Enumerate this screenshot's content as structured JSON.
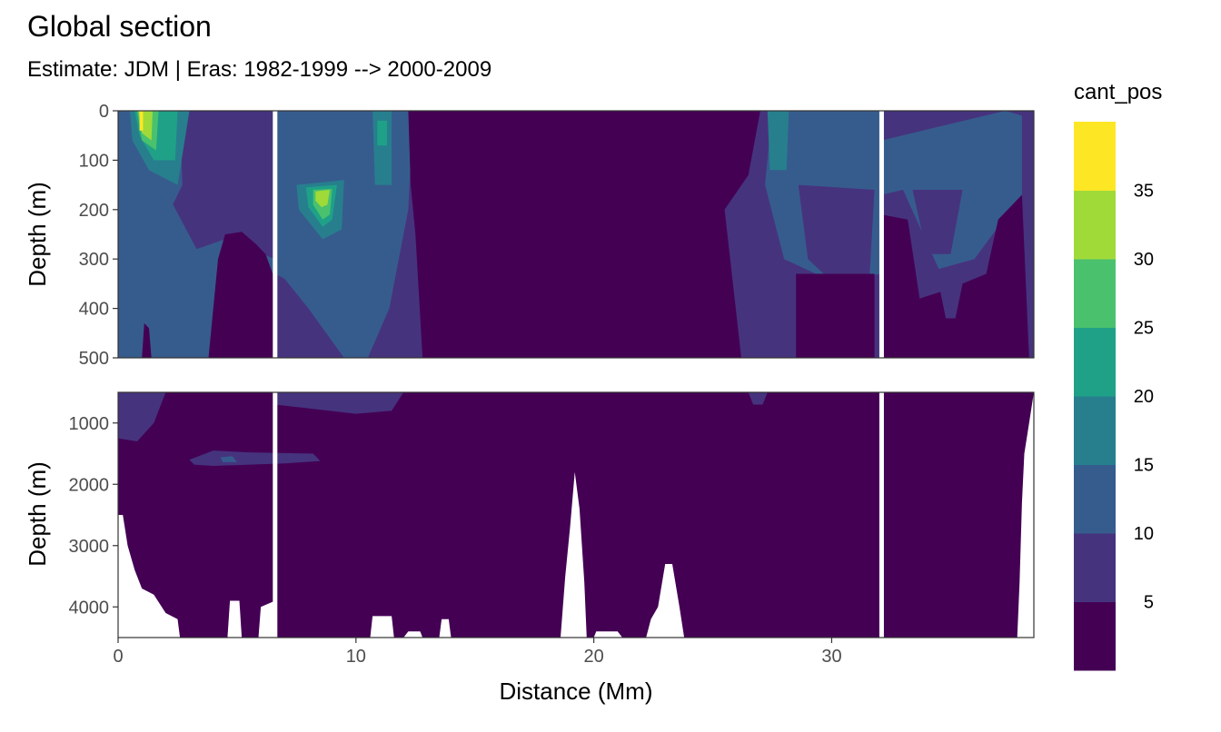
{
  "chart_data": {
    "type": "heatmap",
    "title": "Global section",
    "subtitle": "Estimate: JDM  | Eras: 1982-1999 --> 2000-2009",
    "xlabel": "Distance (Mm)",
    "ylabel": "Depth (m)",
    "xlim": [
      0,
      38.5
    ],
    "x_ticks": [
      0,
      10,
      20,
      30
    ],
    "x_tick_labels": [
      "0",
      "10",
      "20",
      "30"
    ],
    "panels": [
      {
        "name": "upper",
        "ylim": [
          0,
          500
        ],
        "y_ticks": [
          0,
          100,
          200,
          300,
          400,
          500
        ],
        "y_tick_labels": [
          "0",
          "100",
          "200",
          "300",
          "400",
          "500"
        ]
      },
      {
        "name": "lower",
        "ylim": [
          500,
          4500
        ],
        "y_ticks": [
          1000,
          2000,
          3000,
          4000
        ],
        "y_tick_labels": [
          "1000",
          "2000",
          "3000",
          "4000"
        ]
      }
    ],
    "section_gaps": [
      6.6,
      32.1
    ],
    "legend": {
      "title": "cant_pos",
      "placement": "right",
      "breaks": [
        5,
        10,
        15,
        20,
        25,
        30,
        35
      ],
      "break_labels": [
        "5",
        "10",
        "15",
        "20",
        "25",
        "30",
        "35"
      ],
      "bins": [
        {
          "range": [
            0,
            5
          ],
          "color": "#440154"
        },
        {
          "range": [
            5,
            10
          ],
          "color": "#46337E"
        },
        {
          "range": [
            10,
            15
          ],
          "color": "#365C8D"
        },
        {
          "range": [
            15,
            20
          ],
          "color": "#277F8E"
        },
        {
          "range": [
            20,
            25
          ],
          "color": "#1FA187"
        },
        {
          "range": [
            25,
            30
          ],
          "color": "#4AC16D"
        },
        {
          "range": [
            30,
            35
          ],
          "color": "#A0DA39"
        },
        {
          "range": [
            35,
            40
          ],
          "color": "#FDE725"
        }
      ]
    },
    "grid": true,
    "upper_regions": [
      {
        "level": 1,
        "poly": [
          [
            0,
            0
          ],
          [
            38.5,
            0
          ],
          [
            38.5,
            500
          ],
          [
            0,
            500
          ]
        ]
      },
      {
        "level": 2,
        "poly": [
          [
            0,
            50
          ],
          [
            1.5,
            100
          ],
          [
            2.2,
            180
          ],
          [
            3.3,
            280
          ],
          [
            4.5,
            260
          ],
          [
            5.5,
            280
          ],
          [
            6.6,
            300
          ],
          [
            6.6,
            500
          ],
          [
            0,
            500
          ]
        ]
      },
      {
        "level": 0,
        "poly": [
          [
            3.8,
            500
          ],
          [
            4.2,
            300
          ],
          [
            4.5,
            250
          ],
          [
            5.2,
            245
          ],
          [
            5.8,
            270
          ],
          [
            6.2,
            290
          ],
          [
            6.5,
            330
          ],
          [
            6.6,
            500
          ]
        ]
      },
      {
        "level": 0,
        "poly": [
          [
            1.0,
            500
          ],
          [
            1.1,
            430
          ],
          [
            1.3,
            440
          ],
          [
            1.4,
            500
          ]
        ]
      },
      {
        "level": 2,
        "poly": [
          [
            6.6,
            0
          ],
          [
            10.5,
            0
          ],
          [
            12.4,
            0
          ],
          [
            12.2,
            200
          ],
          [
            11.4,
            400
          ],
          [
            10.5,
            500
          ],
          [
            9.5,
            500
          ],
          [
            8.0,
            400
          ],
          [
            7.0,
            340
          ],
          [
            6.6,
            330
          ]
        ]
      },
      {
        "level": 2,
        "poly": [
          [
            0,
            0
          ],
          [
            2.6,
            0
          ],
          [
            2.7,
            150
          ],
          [
            1.8,
            240
          ],
          [
            0.6,
            180
          ],
          [
            0,
            100
          ]
        ]
      },
      {
        "level": 2,
        "poly": [
          [
            27.5,
            0
          ],
          [
            32.1,
            0
          ],
          [
            32.1,
            330
          ],
          [
            30.0,
            345
          ],
          [
            28.0,
            300
          ],
          [
            27.2,
            150
          ]
        ]
      },
      {
        "level": 2,
        "poly": [
          [
            32.1,
            60
          ],
          [
            37.3,
            0
          ],
          [
            38.0,
            10
          ],
          [
            38.0,
            170
          ],
          [
            36.0,
            300
          ],
          [
            34.5,
            320
          ],
          [
            33.0,
            160
          ],
          [
            32.1,
            170
          ]
        ]
      },
      {
        "level": 1,
        "poly": [
          [
            28.6,
            150
          ],
          [
            31.8,
            160
          ],
          [
            31.6,
            330
          ],
          [
            30.0,
            345
          ],
          [
            29.0,
            300
          ]
        ]
      },
      {
        "level": 1,
        "poly": [
          [
            33.4,
            160
          ],
          [
            35.5,
            160
          ],
          [
            35.0,
            290
          ],
          [
            34.0,
            290
          ]
        ]
      },
      {
        "level": 0,
        "poly": [
          [
            12.2,
            0
          ],
          [
            27.0,
            0
          ],
          [
            26.5,
            130
          ],
          [
            25.5,
            200
          ],
          [
            26.2,
            500
          ],
          [
            12.8,
            500
          ],
          [
            12.5,
            250
          ],
          [
            12.3,
            150
          ]
        ]
      },
      {
        "level": 0,
        "poly": [
          [
            21.5,
            0
          ],
          [
            22.0,
            0
          ],
          [
            22.0,
            60
          ],
          [
            21.5,
            60
          ]
        ]
      },
      {
        "level": 0,
        "poly": [
          [
            28.5,
            330
          ],
          [
            31.8,
            330
          ],
          [
            31.8,
            500
          ],
          [
            28.5,
            500
          ]
        ]
      },
      {
        "level": 0,
        "poly": [
          [
            32.1,
            210
          ],
          [
            33.2,
            220
          ],
          [
            33.7,
            380
          ],
          [
            35.0,
            360
          ],
          [
            36.5,
            330
          ],
          [
            37.0,
            220
          ],
          [
            38.0,
            170
          ],
          [
            38.3,
            500
          ],
          [
            32.1,
            500
          ]
        ]
      },
      {
        "level": 1,
        "poly": [
          [
            34.5,
            350
          ],
          [
            35.5,
            350
          ],
          [
            35.2,
            420
          ],
          [
            34.8,
            420
          ]
        ]
      },
      {
        "level": 3,
        "poly": [
          [
            0.5,
            0
          ],
          [
            3.0,
            0
          ],
          [
            2.5,
            150
          ],
          [
            1.3,
            120
          ],
          [
            0.6,
            60
          ]
        ]
      },
      {
        "level": 3,
        "poly": [
          [
            10.7,
            0
          ],
          [
            11.5,
            0
          ],
          [
            11.5,
            150
          ],
          [
            10.8,
            150
          ]
        ]
      },
      {
        "level": 3,
        "poly": [
          [
            7.5,
            150
          ],
          [
            9.5,
            140
          ],
          [
            9.4,
            240
          ],
          [
            8.6,
            260
          ],
          [
            7.6,
            200
          ]
        ]
      },
      {
        "level": 3,
        "poly": [
          [
            27.3,
            0
          ],
          [
            28.2,
            0
          ],
          [
            28.1,
            120
          ],
          [
            27.4,
            120
          ]
        ]
      },
      {
        "level": 4,
        "poly": [
          [
            0.7,
            0
          ],
          [
            2.5,
            0
          ],
          [
            2.4,
            100
          ],
          [
            1.5,
            100
          ],
          [
            0.9,
            50
          ]
        ]
      },
      {
        "level": 4,
        "poly": [
          [
            7.9,
            155
          ],
          [
            9.2,
            150
          ],
          [
            9.0,
            220
          ],
          [
            8.6,
            235
          ],
          [
            8.0,
            195
          ]
        ]
      },
      {
        "level": 4,
        "poly": [
          [
            10.9,
            20
          ],
          [
            11.3,
            20
          ],
          [
            11.3,
            70
          ],
          [
            10.9,
            70
          ]
        ]
      },
      {
        "level": 5,
        "poly": [
          [
            0.8,
            0
          ],
          [
            1.7,
            0
          ],
          [
            1.6,
            80
          ],
          [
            1.0,
            60
          ]
        ]
      },
      {
        "level": 5,
        "poly": [
          [
            8.2,
            160
          ],
          [
            9.0,
            158
          ],
          [
            8.9,
            210
          ],
          [
            8.6,
            220
          ],
          [
            8.2,
            190
          ]
        ]
      },
      {
        "level": 6,
        "poly": [
          [
            0.85,
            0
          ],
          [
            1.45,
            0
          ],
          [
            1.4,
            60
          ],
          [
            1.0,
            45
          ]
        ]
      },
      {
        "level": 6,
        "poly": [
          [
            8.3,
            163
          ],
          [
            8.9,
            160
          ],
          [
            8.8,
            190
          ],
          [
            8.55,
            195
          ],
          [
            8.3,
            182
          ]
        ]
      },
      {
        "level": 7,
        "poly": [
          [
            0.9,
            0
          ],
          [
            1.05,
            0
          ],
          [
            1.05,
            40
          ],
          [
            0.9,
            40
          ]
        ]
      }
    ],
    "lower_regions": [
      {
        "level": 0,
        "poly": [
          [
            0,
            500
          ],
          [
            38.5,
            500
          ],
          [
            38.5,
            4500
          ],
          [
            0,
            4500
          ]
        ]
      },
      {
        "level": 1,
        "poly": [
          [
            0,
            500
          ],
          [
            2.0,
            500
          ],
          [
            1.5,
            1000
          ],
          [
            0.8,
            1300
          ],
          [
            0,
            1250
          ]
        ]
      },
      {
        "level": 1,
        "poly": [
          [
            3.0,
            1600
          ],
          [
            4.0,
            1450
          ],
          [
            5.5,
            1480
          ],
          [
            8.2,
            1500
          ],
          [
            8.5,
            1620
          ],
          [
            7.0,
            1660
          ],
          [
            4.0,
            1700
          ],
          [
            3.2,
            1680
          ]
        ]
      },
      {
        "level": 2,
        "poly": [
          [
            4.3,
            1560
          ],
          [
            4.8,
            1540
          ],
          [
            5.0,
            1640
          ],
          [
            4.4,
            1640
          ]
        ]
      },
      {
        "level": 1,
        "poly": [
          [
            6.6,
            500
          ],
          [
            12.0,
            500
          ],
          [
            11.5,
            800
          ],
          [
            10.0,
            850
          ],
          [
            8.0,
            760
          ],
          [
            6.6,
            700
          ]
        ]
      },
      {
        "level": 1,
        "poly": [
          [
            26.5,
            500
          ],
          [
            27.3,
            500
          ],
          [
            27.1,
            700
          ],
          [
            26.7,
            700
          ]
        ]
      }
    ],
    "lower_blank": [
      [
        [
          0,
          2500
        ],
        [
          0.2,
          2500
        ],
        [
          0.4,
          3000
        ],
        [
          0.7,
          3400
        ],
        [
          1.0,
          3700
        ],
        [
          1.5,
          3800
        ],
        [
          2.0,
          4100
        ],
        [
          2.5,
          4200
        ],
        [
          2.6,
          4500
        ],
        [
          0,
          4500
        ]
      ],
      [
        [
          4.6,
          4500
        ],
        [
          4.7,
          3900
        ],
        [
          5.1,
          3900
        ],
        [
          5.2,
          4500
        ]
      ],
      [
        [
          5.9,
          4500
        ],
        [
          6.0,
          4000
        ],
        [
          6.6,
          3900
        ],
        [
          6.6,
          4500
        ]
      ],
      [
        [
          10.6,
          4500
        ],
        [
          10.7,
          4150
        ],
        [
          11.5,
          4150
        ],
        [
          11.6,
          4500
        ]
      ],
      [
        [
          12.0,
          4500
        ],
        [
          12.2,
          4400
        ],
        [
          12.7,
          4400
        ],
        [
          12.8,
          4500
        ]
      ],
      [
        [
          13.5,
          4500
        ],
        [
          13.6,
          4200
        ],
        [
          13.9,
          4200
        ],
        [
          14.0,
          4500
        ]
      ],
      [
        [
          18.6,
          4500
        ],
        [
          18.8,
          3500
        ],
        [
          19.0,
          2700
        ],
        [
          19.2,
          1800
        ],
        [
          19.4,
          2400
        ],
        [
          19.6,
          3600
        ],
        [
          19.7,
          4500
        ]
      ],
      [
        [
          20.0,
          4500
        ],
        [
          20.1,
          4400
        ],
        [
          21.0,
          4400
        ],
        [
          21.2,
          4500
        ]
      ],
      [
        [
          22.2,
          4500
        ],
        [
          22.4,
          4200
        ],
        [
          22.7,
          4000
        ],
        [
          23.0,
          3300
        ],
        [
          23.3,
          3300
        ],
        [
          23.6,
          4000
        ],
        [
          23.8,
          4500
        ]
      ],
      [
        [
          37.8,
          4500
        ],
        [
          37.9,
          3600
        ],
        [
          38.0,
          2300
        ],
        [
          38.1,
          1500
        ],
        [
          38.3,
          1000
        ],
        [
          38.5,
          500
        ],
        [
          38.5,
          4500
        ]
      ]
    ]
  }
}
